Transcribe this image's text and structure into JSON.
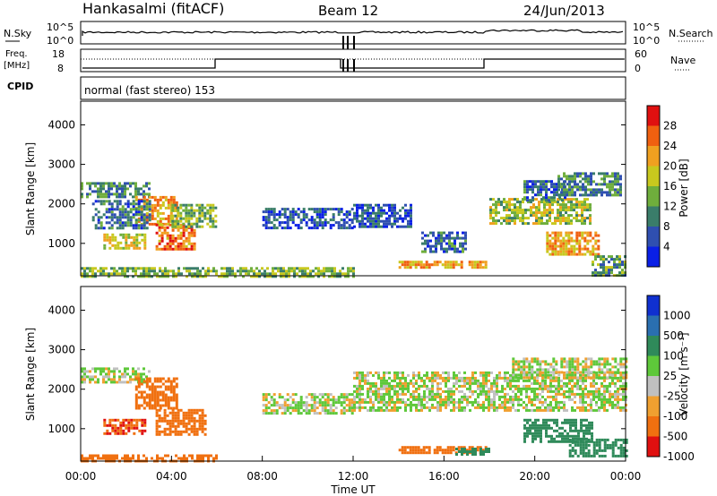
{
  "header": {
    "station": "Hankasalmi (fitACF)",
    "beam": "Beam 12",
    "date": "24/Jun/2013"
  },
  "status_panels": {
    "nsky_label": "N.Sky",
    "nsky_ticks": [
      "10^5",
      "10^0"
    ],
    "nsearch_label": "N.Search",
    "nsearch_ticks": [
      "10^5",
      "10^0"
    ],
    "freq_label_1": "Freq.",
    "freq_label_2": "[MHz]",
    "freq_ticks": [
      "18",
      "8"
    ],
    "nave_label": "Nave",
    "nave_ticks": [
      "60",
      "0"
    ],
    "cpid_label": "CPID",
    "cpid_text": "normal (fast stereo) 153"
  },
  "axes": {
    "ylabel": "Slant Range [km]",
    "xlabel": "Time UT",
    "y_ticks": [
      "1000",
      "2000",
      "3000",
      "4000"
    ],
    "x_ticks": [
      "00:00",
      "04:00",
      "08:00",
      "12:00",
      "16:00",
      "20:00",
      "00:00"
    ]
  },
  "power_scale": {
    "label": "Power [dB]",
    "ticks": [
      "4",
      "8",
      "12",
      "16",
      "20",
      "24",
      "28"
    ],
    "colors": [
      "#0a1fe6",
      "#2f4fb0",
      "#3a7d6a",
      "#6fae3c",
      "#c8c81e",
      "#f0a020",
      "#f06010",
      "#e01010"
    ]
  },
  "velocity_scale": {
    "label": "Velocity [m s⁻¹]",
    "ticks": [
      "1000",
      "500",
      "100",
      "25",
      "-25",
      "-100",
      "-500",
      "-1000"
    ],
    "colors": [
      "#1030d0",
      "#2a6fb0",
      "#2f8a5a",
      "#5ec83a",
      "#c0c0c0",
      "#f0a030",
      "#f07010",
      "#e01010"
    ]
  },
  "chart_data": {
    "type": "heatmap",
    "x_range_hours": [
      0,
      24
    ],
    "y_range_km": [
      180,
      4600
    ],
    "power_regions": [
      {
        "t0": 0.0,
        "t1": 3.0,
        "r0": 2150,
        "r1": 2550,
        "v": 10
      },
      {
        "t0": 1.0,
        "t1": 2.8,
        "r0": 900,
        "r1": 1250,
        "v": 18
      },
      {
        "t0": 2.4,
        "t1": 4.2,
        "r0": 1500,
        "r1": 2200,
        "v": 22
      },
      {
        "t0": 3.3,
        "t1": 5.0,
        "r0": 850,
        "r1": 1500,
        "v": 25
      },
      {
        "t0": 4.0,
        "t1": 6.0,
        "r0": 1400,
        "r1": 2000,
        "v": 14
      },
      {
        "t0": 0.5,
        "t1": 3.0,
        "r0": 1400,
        "r1": 2100,
        "v": 8
      },
      {
        "t0": 8.0,
        "t1": 12.0,
        "r0": 1400,
        "r1": 1900,
        "v": 6
      },
      {
        "t0": 12.0,
        "t1": 14.5,
        "r0": 1400,
        "r1": 2000,
        "v": 6
      },
      {
        "t0": 14.0,
        "t1": 17.8,
        "r0": 360,
        "r1": 560,
        "v": 22
      },
      {
        "t0": 15.0,
        "t1": 17.0,
        "r0": 800,
        "r1": 1300,
        "v": 8
      },
      {
        "t0": 18.0,
        "t1": 22.5,
        "r0": 1500,
        "r1": 2150,
        "v": 16
      },
      {
        "t0": 19.5,
        "t1": 21.5,
        "r0": 2100,
        "r1": 2600,
        "v": 8
      },
      {
        "t0": 21.0,
        "t1": 23.8,
        "r0": 2200,
        "r1": 2800,
        "v": 10
      },
      {
        "t0": 20.5,
        "t1": 22.8,
        "r0": 700,
        "r1": 1300,
        "v": 22
      },
      {
        "t0": 22.5,
        "t1": 24.0,
        "r0": 200,
        "r1": 700,
        "v": 12
      },
      {
        "t0": 0.0,
        "t1": 12.0,
        "r0": 180,
        "r1": 400,
        "v": 14
      }
    ],
    "velocity_regions": [
      {
        "t0": 0.0,
        "t1": 3.0,
        "r0": 2150,
        "r1": 2550,
        "v": 0
      },
      {
        "t0": 1.0,
        "t1": 2.8,
        "r0": 900,
        "r1": 1250,
        "v": -300
      },
      {
        "t0": 2.4,
        "t1": 4.2,
        "r0": 1500,
        "r1": 2300,
        "v": -200
      },
      {
        "t0": 3.3,
        "t1": 5.5,
        "r0": 850,
        "r1": 1500,
        "v": -150
      },
      {
        "t0": 0.0,
        "t1": 6.0,
        "r0": 180,
        "r1": 350,
        "v": -200
      },
      {
        "t0": 8.0,
        "t1": 12.0,
        "r0": 1400,
        "r1": 1900,
        "v": 0
      },
      {
        "t0": 12.0,
        "t1": 24.0,
        "r0": 1450,
        "r1": 2450,
        "v": 0
      },
      {
        "t0": 14.0,
        "t1": 17.8,
        "r0": 360,
        "r1": 560,
        "v": -200
      },
      {
        "t0": 16.5,
        "t1": 18.0,
        "r0": 360,
        "r1": 520,
        "v": 150
      },
      {
        "t0": 19.5,
        "t1": 22.5,
        "r0": 700,
        "r1": 1250,
        "v": 200
      },
      {
        "t0": 21.5,
        "t1": 24.0,
        "r0": 300,
        "r1": 750,
        "v": 200
      },
      {
        "t0": 19.0,
        "t1": 24.0,
        "r0": 2300,
        "r1": 2800,
        "v": 0
      }
    ]
  }
}
